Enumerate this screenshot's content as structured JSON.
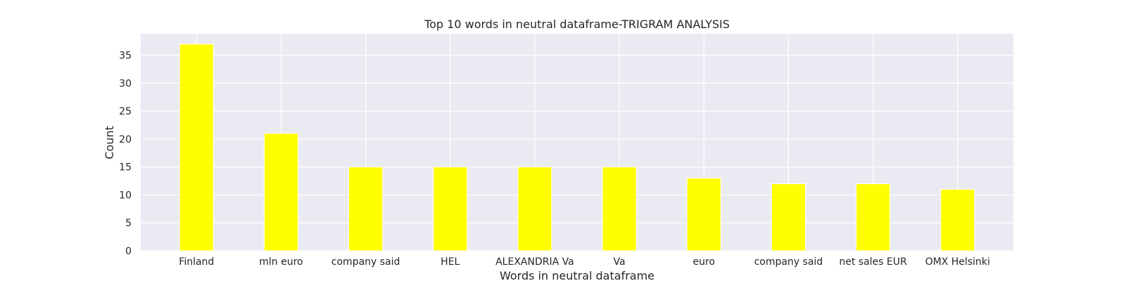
{
  "chart_data": {
    "type": "bar",
    "title": "Top 10 words in neutral dataframe-TRIGRAM ANALYSIS",
    "xlabel": "Words in neutral dataframe",
    "ylabel": "Count",
    "categories": [
      "Finland",
      "mln euro",
      "company said",
      "HEL",
      "ALEXANDRIA  Va",
      "Va",
      "euro",
      "company said",
      "net sales EUR",
      "OMX Helsinki"
    ],
    "values": [
      37,
      21,
      15,
      15,
      15,
      15,
      13,
      12,
      12,
      11
    ],
    "ylim": [
      0,
      38.85
    ],
    "yticks": [
      0,
      5,
      10,
      15,
      20,
      25,
      30,
      35
    ],
    "grid": true,
    "colors": {
      "bar": "#ffff00",
      "plot_background": "#eaeaf2",
      "grid": "#ffffff"
    }
  }
}
